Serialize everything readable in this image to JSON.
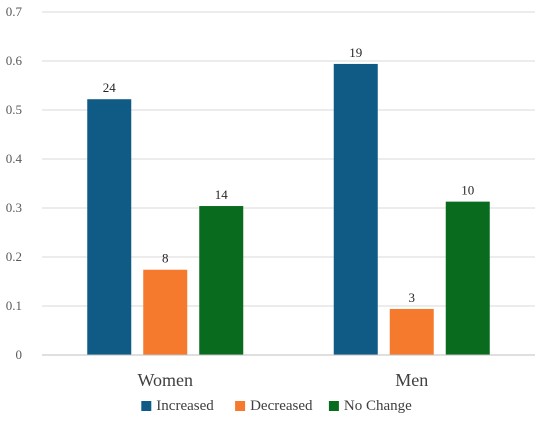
{
  "chart_data": {
    "type": "bar",
    "title": "",
    "xlabel": "",
    "ylabel": "",
    "categories": [
      "Women",
      "Men"
    ],
    "series": [
      {
        "name": "Increased",
        "color": "#0f5b85",
        "values": [
          0.522,
          0.594
        ],
        "labels": [
          "24",
          "19"
        ]
      },
      {
        "name": "Decreased",
        "color": "#f57a2e",
        "values": [
          0.174,
          0.094
        ],
        "labels": [
          "8",
          "3"
        ]
      },
      {
        "name": "No Change",
        "color": "#086b1e",
        "values": [
          0.304,
          0.313
        ],
        "labels": [
          "14",
          "10"
        ]
      }
    ],
    "ylim": [
      0,
      0.7
    ],
    "yticks": [
      "0",
      "0.1",
      "0.2",
      "0.3",
      "0.4",
      "0.5",
      "0.6",
      "0.7"
    ],
    "grid": true,
    "legend": "bottom"
  }
}
